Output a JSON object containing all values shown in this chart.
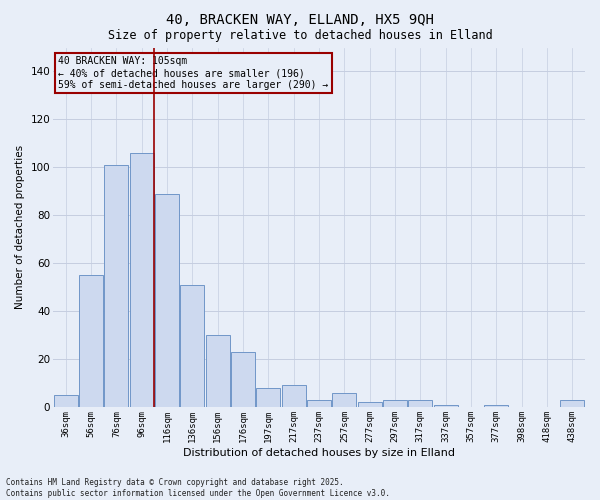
{
  "title": "40, BRACKEN WAY, ELLAND, HX5 9QH",
  "subtitle": "Size of property relative to detached houses in Elland",
  "xlabel": "Distribution of detached houses by size in Elland",
  "ylabel": "Number of detached properties",
  "bar_labels": [
    "36sqm",
    "56sqm",
    "76sqm",
    "96sqm",
    "116sqm",
    "136sqm",
    "156sqm",
    "176sqm",
    "197sqm",
    "217sqm",
    "237sqm",
    "257sqm",
    "277sqm",
    "297sqm",
    "317sqm",
    "337sqm",
    "357sqm",
    "377sqm",
    "398sqm",
    "418sqm",
    "438sqm"
  ],
  "bar_values": [
    5,
    55,
    101,
    106,
    89,
    51,
    30,
    23,
    8,
    9,
    3,
    6,
    2,
    3,
    3,
    1,
    0,
    1,
    0,
    0,
    3
  ],
  "bar_color": "#cdd9ef",
  "bar_edge_color": "#7096c8",
  "ylim": [
    0,
    150
  ],
  "yticks": [
    0,
    20,
    40,
    60,
    80,
    100,
    120,
    140
  ],
  "vline_x": 3.5,
  "vline_color": "#990000",
  "annotation_title": "40 BRACKEN WAY: 105sqm",
  "annotation_line1": "← 40% of detached houses are smaller (196)",
  "annotation_line2": "59% of semi-detached houses are larger (290) →",
  "annotation_box_edgecolor": "#990000",
  "footer_line1": "Contains HM Land Registry data © Crown copyright and database right 2025.",
  "footer_line2": "Contains public sector information licensed under the Open Government Licence v3.0.",
  "background_color": "#e8eef8",
  "grid_color": "#c5cde0"
}
